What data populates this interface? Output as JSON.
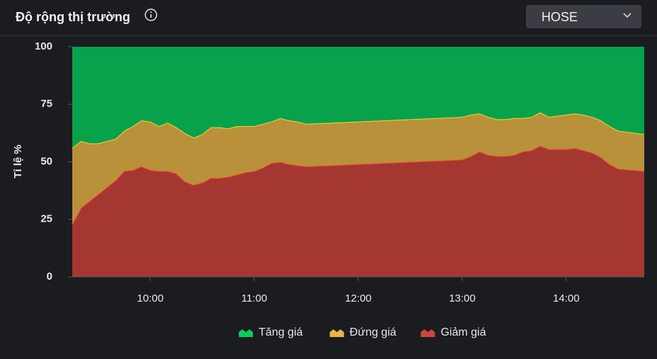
{
  "header": {
    "title": "Độ rộng thị trường",
    "market": "HOSE"
  },
  "chart_data": {
    "type": "stacked-area",
    "y_label": "Tỉ lệ %",
    "x": [
      555,
      560,
      565,
      570,
      575,
      580,
      585,
      590,
      595,
      600,
      605,
      610,
      615,
      620,
      625,
      630,
      635,
      640,
      645,
      650,
      655,
      660,
      665,
      670,
      675,
      680,
      685,
      690,
      780,
      785,
      790,
      795,
      800,
      805,
      810,
      815,
      820,
      825,
      830,
      835,
      840,
      845,
      850,
      855,
      860,
      865,
      870,
      885
    ],
    "xlim": [
      555,
      885
    ],
    "xticks": [
      {
        "value": 600,
        "label": "10:00"
      },
      {
        "value": 660,
        "label": "11:00"
      },
      {
        "value": 720,
        "label": "12:00"
      },
      {
        "value": 780,
        "label": "13:00"
      },
      {
        "value": 840,
        "label": "14:00"
      }
    ],
    "ylim": [
      0,
      100
    ],
    "yticks": [
      0,
      25,
      50,
      75,
      100
    ],
    "grid": false,
    "legend": "bottom",
    "series": [
      {
        "name": "Tăng giá",
        "color": "#07a24b",
        "values": [
          44,
          41,
          42,
          42,
          41,
          40,
          36.5,
          34.5,
          32,
          32.5,
          34.5,
          33,
          35,
          37.5,
          39.5,
          38,
          35,
          35,
          35.5,
          34.5,
          34.5,
          34.5,
          33.5,
          32.5,
          31,
          32,
          32.5,
          33.5,
          30.5,
          29.5,
          29,
          30.5,
          31.5,
          31.5,
          31,
          31,
          30.5,
          28.5,
          30.5,
          30,
          29.5,
          29,
          29.5,
          30.5,
          32,
          34.5,
          36.5,
          38
        ]
      },
      {
        "name": "Đứng giá",
        "color": "#b8913a",
        "values": [
          33,
          29,
          25,
          22,
          20,
          18,
          17.5,
          19,
          20,
          21,
          19.5,
          21,
          20,
          21,
          20.5,
          21,
          22,
          22,
          21,
          21,
          20,
          19.5,
          19,
          18,
          19,
          19,
          19,
          18.5,
          18.5,
          18,
          16.5,
          16.5,
          16,
          16,
          16,
          14.5,
          14.5,
          14.5,
          14,
          14.5,
          15,
          15,
          15.5,
          15.5,
          16,
          16.5,
          16.5,
          16
        ]
      },
      {
        "name": "Giảm giá",
        "color": "#a43830",
        "values": [
          23,
          30,
          33,
          36,
          39,
          42,
          46,
          46.5,
          48,
          46.5,
          46,
          46,
          45,
          41.5,
          40,
          41,
          43,
          43,
          43.5,
          44.5,
          45.5,
          46,
          47.5,
          49.5,
          50,
          49,
          48.5,
          48,
          51,
          52.5,
          54.5,
          53,
          52.5,
          52.5,
          53,
          54.5,
          55,
          57,
          55.5,
          55.5,
          55.5,
          56,
          55,
          54,
          52,
          49,
          47,
          46
        ]
      }
    ]
  }
}
